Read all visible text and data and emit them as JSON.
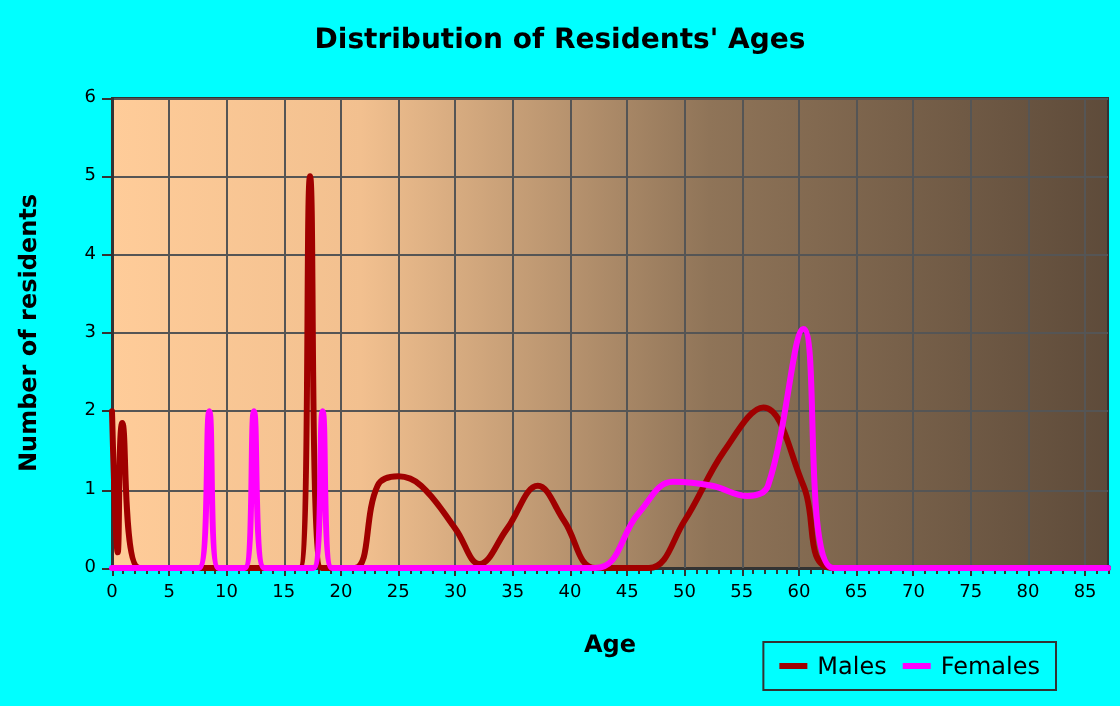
{
  "chart_data": {
    "type": "line",
    "title": "Distribution of Residents' Ages",
    "xlabel": "Age",
    "ylabel": "Number of residents",
    "xlim": [
      0,
      87
    ],
    "xticks": [
      0,
      5,
      10,
      15,
      20,
      25,
      30,
      35,
      40,
      45,
      50,
      55,
      60,
      65,
      70,
      75,
      80,
      85
    ],
    "ylim": [
      0,
      6
    ],
    "yticks": [
      0,
      1,
      2,
      3,
      4,
      5,
      6
    ],
    "grid": true,
    "legend": "bottom right",
    "marker": "none",
    "line_style": "solid",
    "series": [
      {
        "name": "Males",
        "color": "#a00000",
        "x": [
          0,
          0.5,
          0.9,
          2.4,
          16.4,
          17.3,
          18.3,
          21.2,
          23.2,
          25,
          27,
          30,
          32.1,
          34.5,
          37.2,
          39.5,
          42.2,
          46.9,
          50,
          53.5,
          56.9,
          60.4,
          63,
          87
        ],
        "values": [
          2,
          0.2,
          1.85,
          0,
          0,
          5,
          0,
          0,
          1.05,
          1.17,
          1.05,
          0.5,
          0.05,
          0.5,
          1.05,
          0.6,
          0,
          0,
          0.6,
          1.5,
          2.05,
          1.05,
          0,
          0
        ]
      },
      {
        "name": "Females",
        "color": "#ff00ff",
        "x": [
          0,
          7.6,
          8.5,
          9.3,
          11.6,
          12.4,
          13.3,
          17.6,
          18.4,
          19.2,
          42.2,
          46,
          49,
          52.4,
          55.5,
          57.3,
          60.4,
          63,
          87
        ],
        "values": [
          0,
          0,
          2,
          0,
          0,
          2,
          0,
          0,
          2,
          0,
          0,
          0.7,
          1.1,
          1.05,
          0.92,
          1.05,
          3.05,
          0,
          0
        ]
      }
    ]
  }
}
